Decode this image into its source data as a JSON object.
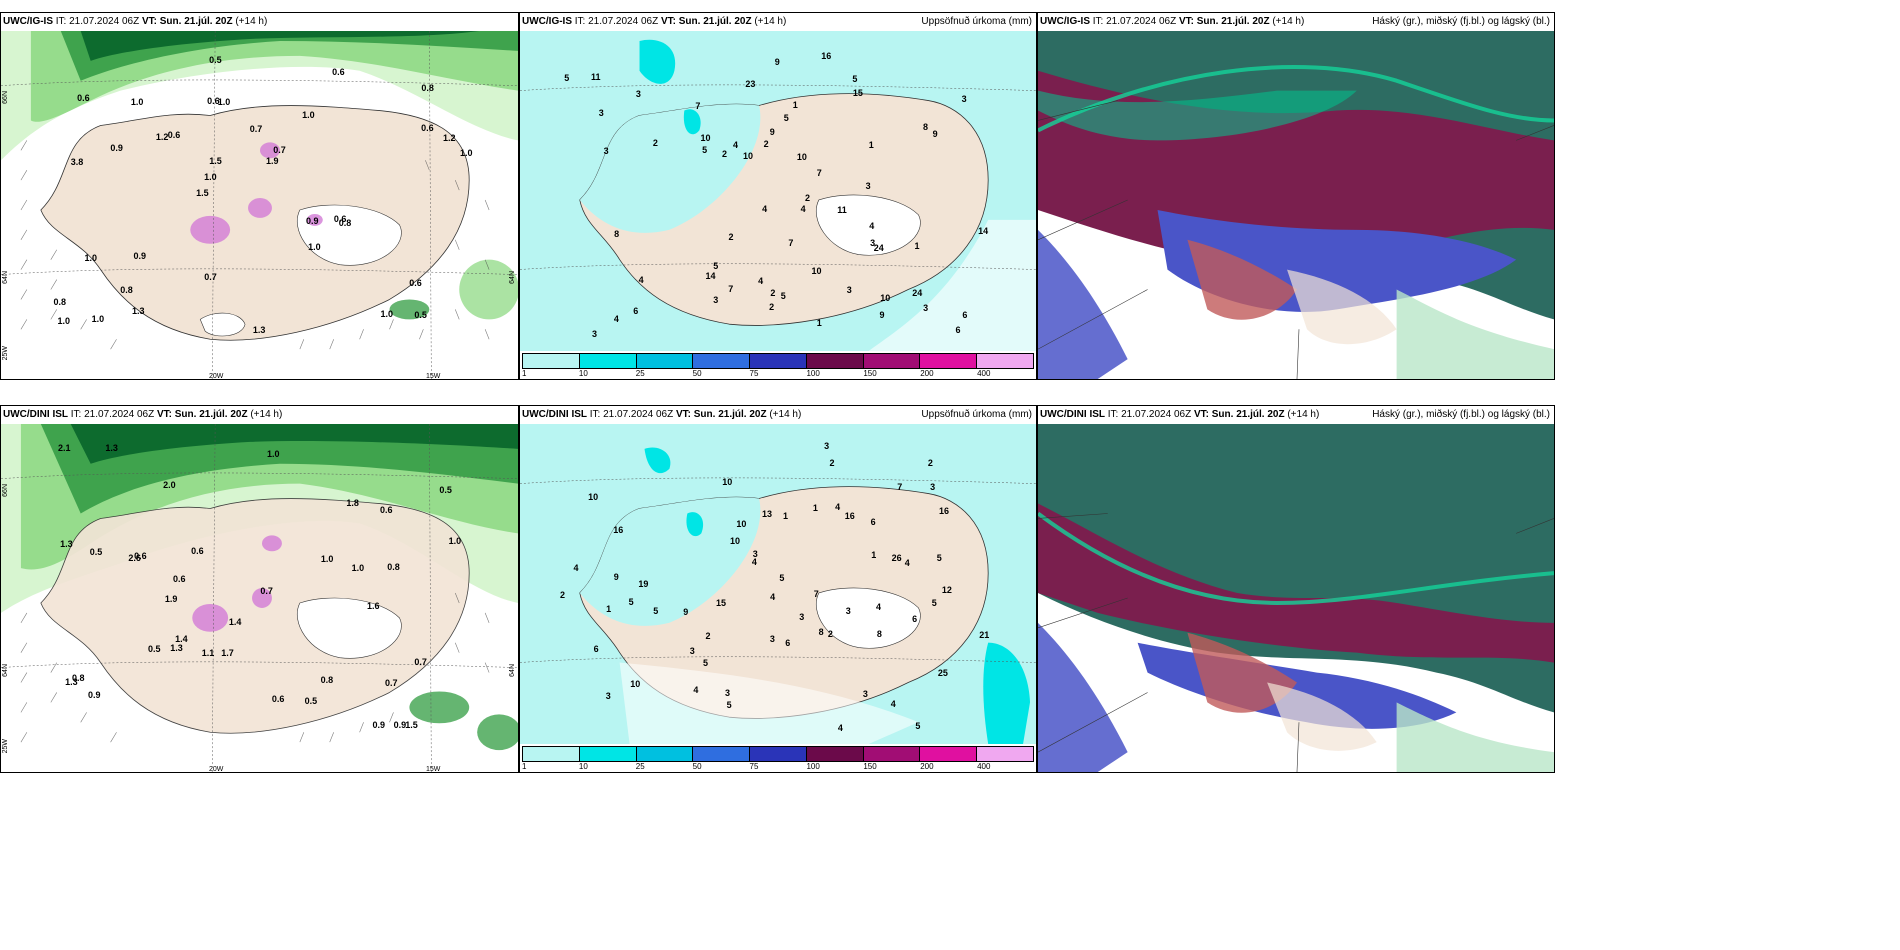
{
  "panels": [
    {
      "model": "UWC/IG-IS",
      "it_label": "IT:",
      "it_value": "21.07.2024 06Z",
      "vt_label": "VT:",
      "vt_value": "Sun. 21.júl. 20Z",
      "lead": "(+14 h)",
      "right_title": "",
      "axis_labels": {
        "lat_top": "66N",
        "lat_mid": "64N",
        "lat_bottom": "25W",
        "lon_left": "20W",
        "lon_right": "15W",
        "right_mid": "64N"
      },
      "values": [
        "0.5",
        "3.8",
        "0.8",
        "1.5",
        "1.0",
        "1.0",
        "0.6",
        "0.7",
        "1.0",
        "0.6",
        "0.8",
        "0.8",
        "1.0",
        "0.7",
        "0.8",
        "0.6",
        "0.5",
        "1.0",
        "0.9",
        "0.6",
        "1.0",
        "0.7",
        "1.5",
        "1.0",
        "0.6",
        "0.9",
        "1.0",
        "0.6",
        "0.6",
        "1.3",
        "1.2",
        "0.9",
        "1.0",
        "1.3",
        "1.2",
        "1.9",
        "1.0"
      ]
    },
    {
      "model": "UWC/IG-IS",
      "it_label": "IT:",
      "it_value": "21.07.2024 06Z",
      "vt_label": "VT:",
      "vt_value": "Sun. 21.júl. 20Z",
      "lead": "(+14 h)",
      "right_title": "Uppsöfnuð úrkoma (mm)",
      "values": [
        "4",
        "1",
        "2",
        "7",
        "23",
        "16",
        "24",
        "5",
        "10",
        "14",
        "6",
        "5",
        "7",
        "9",
        "3",
        "10",
        "3",
        "8",
        "4",
        "3",
        "5",
        "6",
        "2",
        "11",
        "24",
        "15",
        "4",
        "5",
        "9",
        "10",
        "3",
        "2",
        "1",
        "3",
        "4",
        "1",
        "2",
        "1",
        "3",
        "4",
        "2",
        "5",
        "7",
        "3",
        "3",
        "2",
        "9",
        "5",
        "14",
        "6",
        "3",
        "2",
        "11",
        "9",
        "4",
        "3",
        "8",
        "10",
        "7",
        "4",
        "10"
      ],
      "legend_ticks": [
        "1",
        "10",
        "25",
        "50",
        "75",
        "100",
        "150",
        "200",
        "400"
      ]
    },
    {
      "model": "UWC/IG-IS",
      "it_label": "IT:",
      "it_value": "21.07.2024 06Z",
      "vt_label": "VT:",
      "vt_value": "Sun. 21.júl. 20Z",
      "lead": "(+14 h)",
      "right_title": "Háský (gr.), miðský (fj.bl.) og lágský (bl.)"
    },
    {
      "model": "UWC/DINI ISL",
      "it_label": "IT:",
      "it_value": "21.07.2024 06Z",
      "vt_label": "VT:",
      "vt_value": "Sun. 21.júl. 20Z",
      "lead": "(+14 h)",
      "right_title": "",
      "axis_labels": {
        "lat_top": "66N",
        "lat_mid": "64N",
        "lat_bottom": "25W",
        "lon_left": "20W",
        "lon_right": "15W",
        "right_mid": "64N"
      },
      "values": [
        "1.4",
        "2.6",
        "1.3",
        "1.6",
        "1.5",
        "2.0",
        "1.7",
        "1.9",
        "1.3",
        "1.0",
        "0.8",
        "1.0",
        "2.1",
        "0.9",
        "0.6",
        "0.8",
        "0.7",
        "1.0",
        "0.5",
        "0.6",
        "0.9",
        "0.6",
        "0.5",
        "0.5",
        "0.7",
        "1.0",
        "0.6",
        "0.8",
        "0.6",
        "1.3",
        "1.4",
        "1.1",
        "0.9",
        "0.7",
        "1.8",
        "1.3",
        "0.5"
      ]
    },
    {
      "model": "UWC/DINI ISL",
      "it_label": "IT:",
      "it_value": "21.07.2024 06Z",
      "vt_label": "VT:",
      "vt_value": "Sun. 21.júl. 20Z",
      "lead": "(+14 h)",
      "right_title": "Uppsöfnuð úrkoma (mm)",
      "values": [
        "5",
        "5",
        "8",
        "10",
        "25",
        "16",
        "10",
        "9",
        "6",
        "13",
        "16",
        "4",
        "5",
        "10",
        "7",
        "6",
        "4",
        "5",
        "4",
        "3",
        "2",
        "1",
        "26",
        "21",
        "12",
        "9",
        "5",
        "4",
        "4",
        "3",
        "2",
        "1",
        "3",
        "4",
        "10",
        "6",
        "5",
        "3",
        "7",
        "4",
        "2",
        "6",
        "4",
        "3",
        "15",
        "19",
        "16",
        "2",
        "1",
        "3",
        "3",
        "5",
        "8",
        "4",
        "10",
        "2",
        "5",
        "3",
        "3",
        "1",
        "3"
      ],
      "legend_ticks": [
        "1",
        "10",
        "25",
        "50",
        "75",
        "100",
        "150",
        "200",
        "400"
      ]
    },
    {
      "model": "UWC/DINI ISL",
      "it_label": "IT:",
      "it_value": "21.07.2024 06Z",
      "vt_label": "VT:",
      "vt_value": "Sun. 21.júl. 20Z",
      "lead": "(+14 h)",
      "right_title": "Háský (gr.), miðský (fj.bl.) og lágský (bl.)"
    }
  ],
  "colors": {
    "land": "#f2e4d6",
    "sea": "#ffffff",
    "precip_light": "#b8f5f2",
    "precip_mid": "#00e5e5",
    "green_1": "#d7f5d0",
    "green_2": "#96dc8c",
    "green_3": "#3fa34d",
    "green_4": "#0d6b2e",
    "cloud_high": "#2d6c62",
    "cloud_mid": "#7a1f4e",
    "cloud_low": "#4a55c8",
    "legend": [
      "#b8f5f2",
      "#00e5e5",
      "#00c0e0",
      "#2f6ee0",
      "#2a34b8",
      "#6b0a4a",
      "#a10d74",
      "#e010a0",
      "#f0a8f0"
    ]
  }
}
